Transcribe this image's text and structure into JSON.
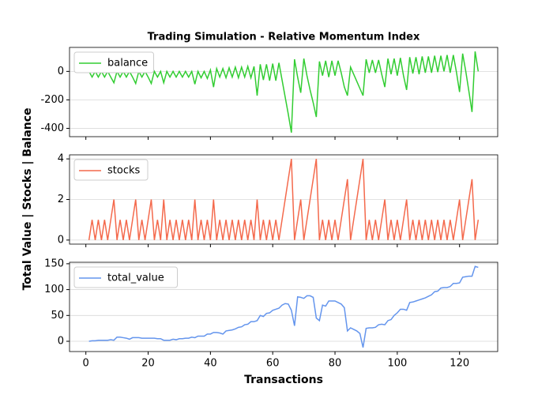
{
  "chart_data": [
    {
      "type": "line",
      "title": "Trading Simulation - Relative Momentum Index",
      "legend": "upper left",
      "grid": "y",
      "xlim": [
        -5.25,
        132.25
      ],
      "ylim": [
        -458.5,
        168.5
      ],
      "yticks": [
        -400,
        -200,
        0
      ],
      "x": [
        1,
        2,
        3,
        4,
        5,
        6,
        7,
        8,
        9,
        10,
        11,
        12,
        13,
        14,
        15,
        16,
        17,
        18,
        19,
        20,
        21,
        22,
        23,
        24,
        25,
        26,
        27,
        28,
        29,
        30,
        31,
        32,
        33,
        34,
        35,
        36,
        37,
        38,
        39,
        40,
        41,
        42,
        43,
        44,
        45,
        46,
        47,
        48,
        49,
        50,
        51,
        52,
        53,
        54,
        55,
        56,
        57,
        58,
        59,
        60,
        61,
        62,
        63,
        64,
        65,
        66,
        67,
        68,
        69,
        70,
        71,
        72,
        73,
        74,
        75,
        76,
        77,
        78,
        79,
        80,
        81,
        82,
        83,
        84,
        85,
        86,
        87,
        88,
        89,
        90,
        91,
        92,
        93,
        94,
        95,
        96,
        97,
        98,
        99,
        100,
        101,
        102,
        103,
        104,
        105,
        106,
        107,
        108,
        109,
        110,
        111,
        112,
        113,
        114,
        115,
        116,
        117,
        118,
        119,
        120,
        121,
        122,
        123,
        124,
        125,
        126
      ],
      "series": [
        {
          "name": "balance",
          "color": "#32cd32",
          "values": [
            0,
            -40,
            0,
            -40,
            0,
            -40,
            0,
            -40,
            -80,
            0,
            -40,
            0,
            -40,
            0,
            -40,
            -85,
            0,
            -40,
            0,
            -40,
            -85,
            0,
            -40,
            0,
            -80,
            0,
            -40,
            0,
            -40,
            0,
            -40,
            0,
            -40,
            0,
            -90,
            0,
            -45,
            0,
            -50,
            10,
            -110,
            20,
            -40,
            20,
            -45,
            25,
            -40,
            30,
            -45,
            30,
            -40,
            35,
            -45,
            35,
            -170,
            50,
            -60,
            50,
            -65,
            55,
            -65,
            60,
            -60,
            -180,
            -300,
            -430,
            85,
            -40,
            -150,
            90,
            -30,
            -130,
            -220,
            -320,
            70,
            -30,
            75,
            -40,
            75,
            -30,
            75,
            -10,
            -110,
            -170,
            30,
            -20,
            -70,
            -120,
            -170,
            85,
            -10,
            80,
            -10,
            80,
            -20,
            -110,
            90,
            -20,
            90,
            -30,
            95,
            -30,
            -130,
            100,
            -15,
            100,
            -20,
            105,
            -10,
            105,
            -10,
            110,
            -5,
            110,
            0,
            115,
            -10,
            115,
            -5,
            -145,
            125,
            0,
            -140,
            -285,
            140,
            0
          ]
        }
      ]
    },
    {
      "type": "line",
      "ylabel": "Total Value | Stocks | Balance",
      "legend": "upper left",
      "grid": "y",
      "xlim": [
        -5.25,
        132.25
      ],
      "ylim": [
        -0.2,
        4.2
      ],
      "yticks": [
        0,
        2,
        4
      ],
      "x": [
        1,
        2,
        3,
        4,
        5,
        6,
        7,
        8,
        9,
        10,
        11,
        12,
        13,
        14,
        15,
        16,
        17,
        18,
        19,
        20,
        21,
        22,
        23,
        24,
        25,
        26,
        27,
        28,
        29,
        30,
        31,
        32,
        33,
        34,
        35,
        36,
        37,
        38,
        39,
        40,
        41,
        42,
        43,
        44,
        45,
        46,
        47,
        48,
        49,
        50,
        51,
        52,
        53,
        54,
        55,
        56,
        57,
        58,
        59,
        60,
        61,
        62,
        63,
        64,
        65,
        66,
        67,
        68,
        69,
        70,
        71,
        72,
        73,
        74,
        75,
        76,
        77,
        78,
        79,
        80,
        81,
        82,
        83,
        84,
        85,
        86,
        87,
        88,
        89,
        90,
        91,
        92,
        93,
        94,
        95,
        96,
        97,
        98,
        99,
        100,
        101,
        102,
        103,
        104,
        105,
        106,
        107,
        108,
        109,
        110,
        111,
        112,
        113,
        114,
        115,
        116,
        117,
        118,
        119,
        120,
        121,
        122,
        123,
        124,
        125,
        126
      ],
      "series": [
        {
          "name": "stocks",
          "color": "#f4694c",
          "values": [
            0,
            1,
            0,
            1,
            0,
            1,
            0,
            1,
            2,
            0,
            1,
            0,
            1,
            0,
            1,
            2,
            0,
            1,
            0,
            1,
            2,
            0,
            1,
            0,
            2,
            0,
            1,
            0,
            1,
            0,
            1,
            0,
            1,
            0,
            2,
            0,
            1,
            0,
            1,
            0,
            2,
            0,
            1,
            0,
            1,
            0,
            1,
            0,
            1,
            0,
            1,
            0,
            1,
            0,
            2,
            0,
            1,
            0,
            1,
            0,
            1,
            0,
            1,
            2,
            3,
            4,
            0,
            1,
            2,
            0,
            1,
            2,
            3,
            4,
            0,
            1,
            0,
            1,
            0,
            1,
            0,
            1,
            2,
            3,
            0,
            1,
            2,
            3,
            4,
            0,
            1,
            0,
            1,
            0,
            1,
            2,
            0,
            1,
            0,
            1,
            0,
            1,
            2,
            0,
            1,
            0,
            1,
            0,
            1,
            0,
            1,
            0,
            1,
            0,
            1,
            0,
            1,
            0,
            1,
            2,
            0,
            1,
            2,
            3,
            0,
            1
          ]
        }
      ]
    },
    {
      "type": "line",
      "xlabel": "Transactions",
      "legend": "upper left",
      "grid": "y",
      "xlim": [
        -5.25,
        132.25
      ],
      "xticks": [
        0,
        20,
        40,
        60,
        80,
        100,
        120
      ],
      "ylim": [
        -19.85,
        152.85
      ],
      "yticks": [
        0,
        50,
        100,
        150
      ],
      "x": [
        1,
        2,
        3,
        4,
        5,
        6,
        7,
        8,
        9,
        10,
        11,
        12,
        13,
        14,
        15,
        16,
        17,
        18,
        19,
        20,
        21,
        22,
        23,
        24,
        25,
        26,
        27,
        28,
        29,
        30,
        31,
        32,
        33,
        34,
        35,
        36,
        37,
        38,
        39,
        40,
        41,
        42,
        43,
        44,
        45,
        46,
        47,
        48,
        49,
        50,
        51,
        52,
        53,
        54,
        55,
        56,
        57,
        58,
        59,
        60,
        61,
        62,
        63,
        64,
        65,
        66,
        67,
        68,
        69,
        70,
        71,
        72,
        73,
        74,
        75,
        76,
        77,
        78,
        79,
        80,
        81,
        82,
        83,
        84,
        85,
        86,
        87,
        88,
        89,
        90,
        91,
        92,
        93,
        94,
        95,
        96,
        97,
        98,
        99,
        100,
        101,
        102,
        103,
        104,
        105,
        106,
        107,
        108,
        109,
        110,
        111,
        112,
        113,
        114,
        115,
        116,
        117,
        118,
        119,
        120,
        121,
        122,
        123,
        124,
        125,
        126
      ],
      "series": [
        {
          "name": "total_value",
          "color": "#6495ed",
          "values": [
            0,
            1,
            1,
            2,
            2,
            2,
            2,
            3,
            2,
            8,
            8,
            7,
            6,
            4,
            7,
            7,
            7,
            6,
            6,
            6,
            6,
            6,
            5,
            5,
            2,
            2,
            2,
            4,
            3,
            5,
            5,
            6,
            6,
            8,
            7,
            10,
            10,
            10,
            14,
            14,
            17,
            17,
            16,
            14,
            20,
            21,
            22,
            24,
            27,
            28,
            32,
            33,
            38,
            38,
            40,
            50,
            48,
            54,
            55,
            60,
            62,
            64,
            70,
            73,
            72,
            60,
            30,
            86,
            85,
            83,
            88,
            88,
            85,
            45,
            40,
            70,
            68,
            78,
            78,
            78,
            75,
            72,
            65,
            20,
            26,
            23,
            20,
            15,
            -12,
            25,
            26,
            26,
            27,
            32,
            33,
            32,
            40,
            42,
            50,
            55,
            62,
            62,
            60,
            75,
            76,
            78,
            80,
            82,
            84,
            87,
            90,
            96,
            97,
            103,
            104,
            104,
            106,
            112,
            112,
            113,
            124,
            125,
            126,
            126,
            145,
            143
          ]
        }
      ]
    }
  ]
}
